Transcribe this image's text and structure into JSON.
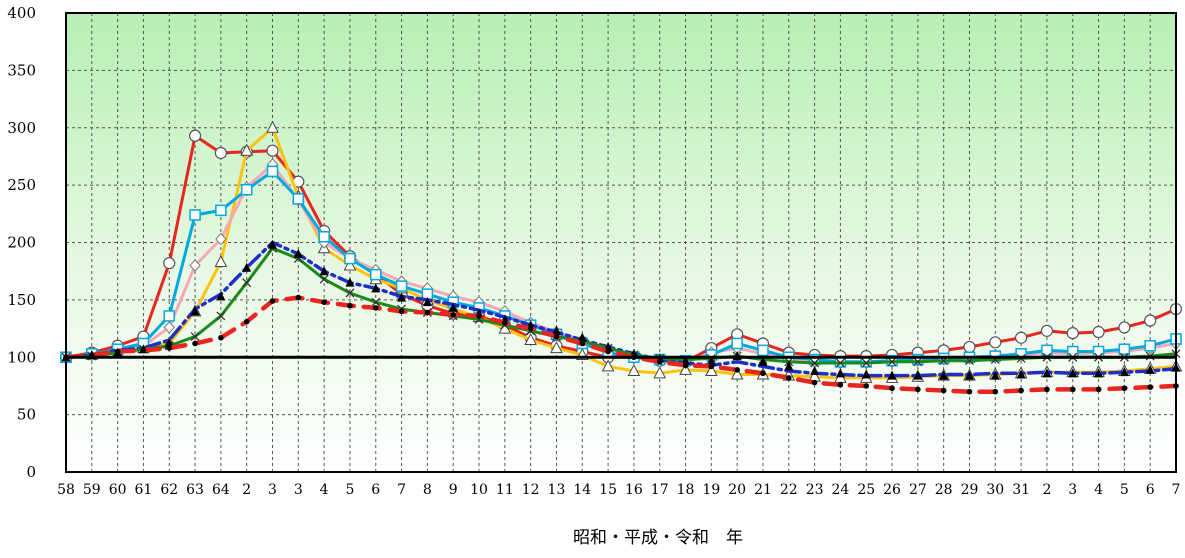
{
  "chart_data": {
    "type": "line",
    "xlabel": "昭和・平成・令和　年",
    "ylabel": "",
    "ylim": [
      0,
      400
    ],
    "yticks": [
      0,
      50,
      100,
      150,
      200,
      250,
      300,
      350,
      400
    ],
    "grid": true,
    "legend": "none",
    "reference_line": 100,
    "categories": [
      "58",
      "59",
      "60",
      "61",
      "62",
      "63",
      "64",
      "2",
      "3",
      "3",
      "4",
      "5",
      "6",
      "7",
      "8",
      "9",
      "10",
      "11",
      "12",
      "13",
      "14",
      "15",
      "16",
      "17",
      "18",
      "19",
      "20",
      "21",
      "22",
      "23",
      "24",
      "25",
      "26",
      "27",
      "28",
      "29",
      "30",
      "31",
      "2",
      "3",
      "4",
      "5",
      "6",
      "7"
    ],
    "series": [
      {
        "color": "#e8251e",
        "marker": "circle",
        "dash": "solid",
        "values": [
          100,
          104,
          110,
          118,
          182,
          293,
          278,
          279,
          280,
          253,
          210,
          188,
          172,
          155,
          145,
          138,
          136,
          128,
          117,
          110,
          105,
          100,
          100,
          97,
          96,
          108,
          120,
          112,
          104,
          102,
          101,
          101,
          102,
          104,
          106,
          109,
          113,
          117,
          123,
          121,
          122,
          126,
          132,
          142
        ]
      },
      {
        "color": "#ffc20e",
        "marker": "triangle",
        "dash": "solid",
        "values": [
          100,
          102,
          104,
          108,
          112,
          140,
          183,
          280,
          300,
          240,
          195,
          180,
          168,
          160,
          150,
          142,
          135,
          125,
          115,
          108,
          102,
          92,
          88,
          86,
          89,
          88,
          85,
          85,
          84,
          83,
          82,
          82,
          82,
          83,
          84,
          84,
          85,
          86,
          87,
          87,
          87,
          88,
          90,
          92
        ]
      },
      {
        "color": "#f6a7b8",
        "marker": "diamond",
        "dash": "solid",
        "values": [
          100,
          102,
          106,
          110,
          126,
          180,
          203,
          248,
          268,
          237,
          200,
          186,
          176,
          166,
          160,
          153,
          148,
          140,
          130,
          122,
          115,
          105,
          100,
          96,
          95,
          104,
          108,
          103,
          98,
          96,
          95,
          95,
          96,
          97,
          98,
          99,
          100,
          102,
          104,
          103,
          104,
          105,
          108,
          112
        ]
      },
      {
        "color": "#00a8e0",
        "marker": "square",
        "dash": "solid",
        "values": [
          100,
          103,
          107,
          112,
          136,
          224,
          228,
          246,
          262,
          238,
          205,
          186,
          172,
          162,
          155,
          148,
          143,
          136,
          128,
          120,
          112,
          104,
          100,
          98,
          97,
          102,
          112,
          106,
          100,
          98,
          96,
          96,
          97,
          98,
          99,
          100,
          101,
          103,
          106,
          105,
          105,
          107,
          110,
          116
        ]
      },
      {
        "color": "#1e2fc8",
        "marker": "none",
        "dash": "dashdot",
        "values": [
          100,
          102,
          106,
          108,
          115,
          142,
          155,
          178,
          200,
          190,
          175,
          165,
          160,
          153,
          150,
          146,
          141,
          135,
          128,
          122,
          115,
          109,
          103,
          98,
          95,
          93,
          96,
          92,
          88,
          86,
          85,
          84,
          84,
          84,
          85,
          85,
          86,
          86,
          87,
          86,
          86,
          87,
          88,
          90
        ]
      },
      {
        "color": "#1a8a1a",
        "marker": "cross",
        "dash": "solid",
        "values": [
          100,
          101,
          104,
          107,
          110,
          118,
          136,
          165,
          195,
          186,
          168,
          156,
          148,
          142,
          139,
          136,
          133,
          128,
          123,
          118,
          114,
          108,
          102,
          99,
          98,
          99,
          101,
          98,
          96,
          95,
          95,
          95,
          96,
          96,
          97,
          97,
          98,
          99,
          100,
          100,
          100,
          100,
          101,
          103
        ]
      },
      {
        "color": "#000000",
        "marker": "triangle-filled",
        "dash": "none",
        "values": [
          100,
          102,
          104,
          107,
          112,
          140,
          153,
          178,
          198,
          190,
          175,
          165,
          160,
          152,
          148,
          143,
          138,
          133,
          128,
          123,
          117,
          109,
          103,
          99,
          97,
          96,
          101,
          96,
          92,
          88,
          86,
          85,
          84,
          84,
          84,
          84,
          84,
          85,
          86,
          86,
          86,
          87,
          89,
          91
        ]
      },
      {
        "color": "#e8251e",
        "marker": "dot",
        "dash": "longdash",
        "values": [
          100,
          102,
          105,
          106,
          108,
          112,
          117,
          131,
          149,
          152,
          148,
          145,
          143,
          140,
          139,
          137,
          136,
          130,
          125,
          118,
          112,
          105,
          100,
          96,
          93,
          92,
          89,
          86,
          82,
          78,
          76,
          75,
          73,
          72,
          71,
          70,
          70,
          71,
          72,
          72,
          72,
          73,
          74,
          75
        ]
      }
    ]
  }
}
